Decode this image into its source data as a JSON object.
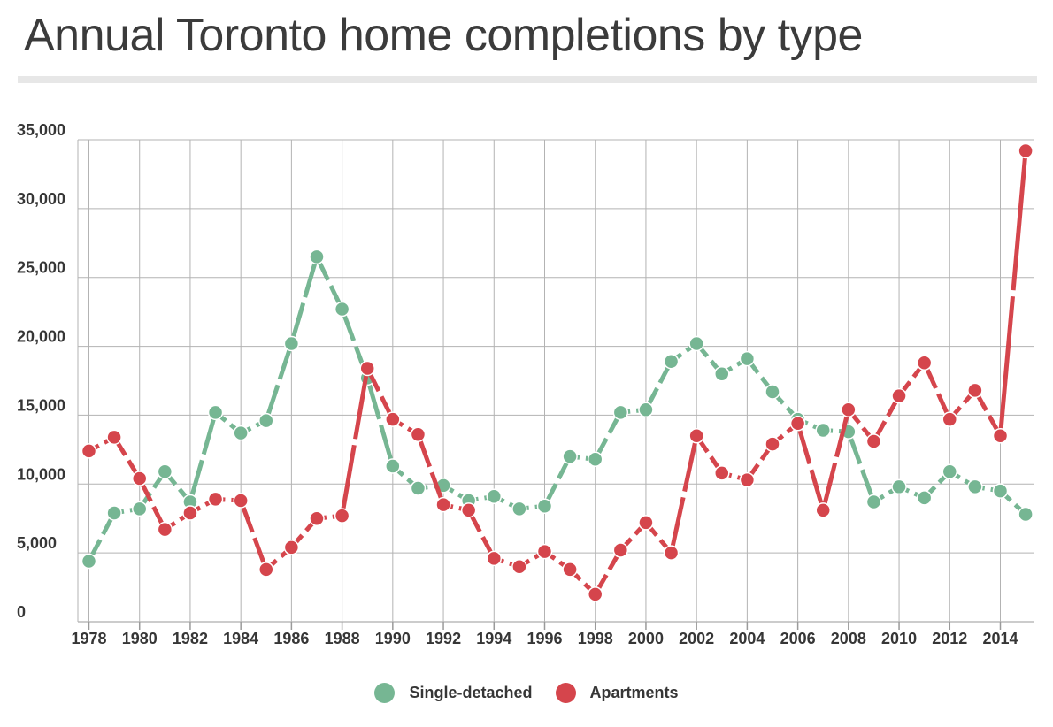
{
  "title": "Annual Toronto home completions by type",
  "legend": [
    {
      "label": "Single-detached",
      "color": "#76b693"
    },
    {
      "label": "Apartments",
      "color": "#d5454c"
    }
  ],
  "colors": {
    "single_detached": "#76b693",
    "apartments": "#d5454c",
    "gridline": "#b3b3b3",
    "axis": "#9a9a9a",
    "tick": "#9a9a9a",
    "axis_text": "#363636",
    "title_text": "#3b3b3b",
    "divider": "#e7e7e7",
    "background": "#ffffff"
  },
  "chart_data": {
    "type": "line",
    "title": "Annual Toronto home completions by type",
    "xlabel": "",
    "ylabel": "",
    "x": [
      1978,
      1979,
      1980,
      1981,
      1982,
      1983,
      1984,
      1985,
      1986,
      1987,
      1988,
      1989,
      1990,
      1991,
      1992,
      1993,
      1994,
      1995,
      1996,
      1997,
      1998,
      1999,
      2000,
      2001,
      2002,
      2003,
      2004,
      2005,
      2006,
      2007,
      2008,
      2009,
      2010,
      2011,
      2012,
      2013,
      2014,
      2015
    ],
    "series": [
      {
        "name": "Single-detached",
        "color": "#76b693",
        "values": [
          4400,
          7900,
          8200,
          10900,
          8700,
          15200,
          13700,
          14600,
          20200,
          26500,
          22700,
          17700,
          11300,
          9700,
          9900,
          8800,
          9100,
          8200,
          8400,
          12000,
          11800,
          15200,
          15400,
          18900,
          20200,
          18000,
          19100,
          16700,
          14700,
          13900,
          13800,
          8700,
          9800,
          9000,
          10900,
          9800,
          9500,
          7800
        ]
      },
      {
        "name": "Apartments",
        "color": "#d5454c",
        "values": [
          12400,
          13400,
          10400,
          6700,
          7900,
          8900,
          8800,
          3800,
          5400,
          7500,
          7700,
          18400,
          14700,
          13600,
          8500,
          8100,
          4600,
          4000,
          5100,
          3800,
          2000,
          5200,
          7200,
          5000,
          13500,
          10800,
          10300,
          12900,
          14400,
          8100,
          15400,
          13100,
          16400,
          18800,
          14700,
          16800,
          13500,
          34200
        ]
      }
    ],
    "ylim": [
      0,
      35000
    ],
    "yticks": [
      0,
      5000,
      10000,
      15000,
      20000,
      25000,
      30000,
      35000
    ],
    "ytick_labels": [
      "0",
      "5,000",
      "10,000",
      "15,000",
      "20,000",
      "25,000",
      "30,000",
      "35,000"
    ],
    "xticks": [
      1978,
      1980,
      1982,
      1984,
      1986,
      1988,
      1990,
      1992,
      1994,
      1996,
      1998,
      2000,
      2002,
      2004,
      2006,
      2008,
      2010,
      2012,
      2014
    ],
    "xtick_labels": [
      "1978",
      "1980",
      "1982",
      "1984",
      "1986",
      "1988",
      "1990",
      "1992",
      "1994",
      "1996",
      "1998",
      "2000",
      "2002",
      "2004",
      "2006",
      "2008",
      "2010",
      "2012",
      "2014"
    ],
    "grid": true,
    "marker": "circle",
    "line_style": "dashed-per-segment",
    "legend_position": "bottom"
  }
}
